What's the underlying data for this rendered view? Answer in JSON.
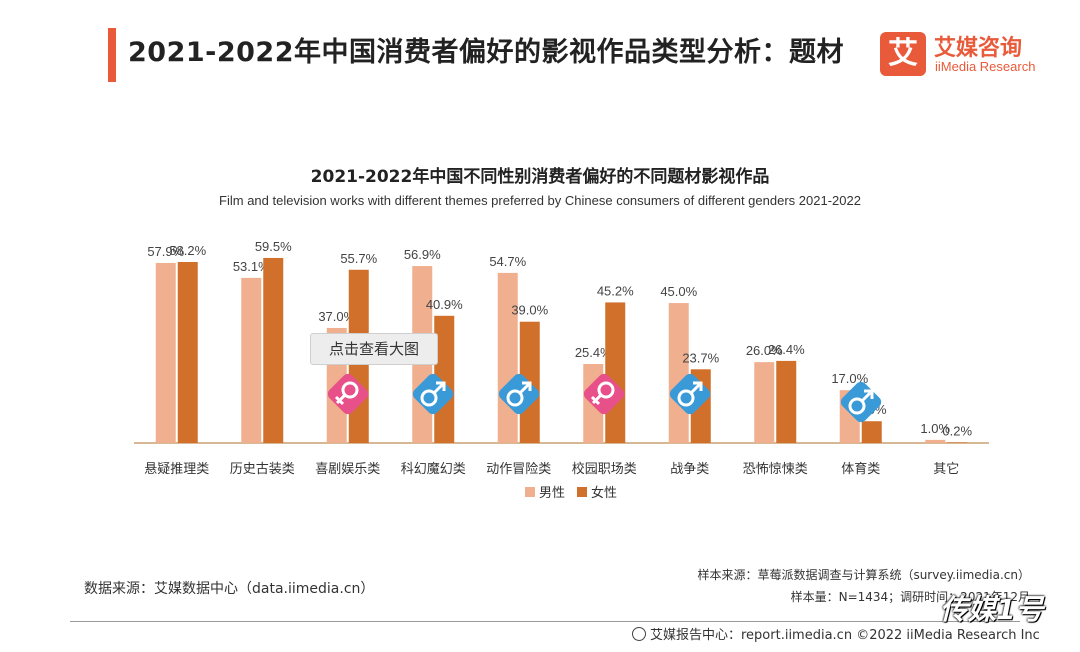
{
  "header": {
    "title": "2021-2022年中国消费者偏好的影视作品类型分析：题材"
  },
  "logo": {
    "mark": "艾",
    "cn": "艾媒咨询",
    "en": "iiMedia Research"
  },
  "colors": {
    "accent": "#e85a3a",
    "male": "#f0b090",
    "female": "#d0702a",
    "female_icon": "#e8508a",
    "male_icon": "#3a9ad8"
  },
  "chart_data": {
    "type": "bar",
    "title": "2021-2022年中国不同性别消费者偏好的不同题材影视作品",
    "subtitle": "Film and television works with different themes preferred by Chinese consumers of different genders 2021-2022",
    "categories": [
      "悬疑推理类",
      "历史古装类",
      "喜剧娱乐类",
      "科幻魔幻类",
      "动作冒险类",
      "校园职场类",
      "战争类",
      "恐怖惊悚类",
      "体育类",
      "其它"
    ],
    "series": [
      {
        "name": "男性",
        "values": [
          57.9,
          53.1,
          37.0,
          56.9,
          54.7,
          25.4,
          45.0,
          26.0,
          17.0,
          1.0
        ]
      },
      {
        "name": "女性",
        "values": [
          58.2,
          59.5,
          55.7,
          40.9,
          39.0,
          45.2,
          23.7,
          26.4,
          7.0,
          0.2
        ]
      }
    ],
    "unit": "%",
    "ylim": [
      0,
      65
    ],
    "legend": "bottom-center",
    "grid": false
  },
  "overlay": {
    "tooltip": "点击查看大图"
  },
  "gender_icons": [
    {
      "type": "female-icon",
      "category": "喜剧娱乐类"
    },
    {
      "type": "male-icon",
      "category": "科幻魔幻类"
    },
    {
      "type": "male-icon",
      "category": "动作冒险类"
    },
    {
      "type": "female-icon",
      "category": "校园职场类"
    },
    {
      "type": "male-icon",
      "category": "战争类"
    },
    {
      "type": "male-icon",
      "category": "体育类"
    }
  ],
  "footer": {
    "source": "数据来源：艾媒数据中心（data.iimedia.cn）",
    "sample_source": "样本来源：草莓派数据调查与计算系统（survey.iimedia.cn）",
    "sample_size": "样本量：N=1434；调研时间：2021年12月",
    "report": "艾媒报告中心：report.iimedia.cn  ©2022  iiMedia Research  Inc",
    "watermark": "传媒1号"
  }
}
